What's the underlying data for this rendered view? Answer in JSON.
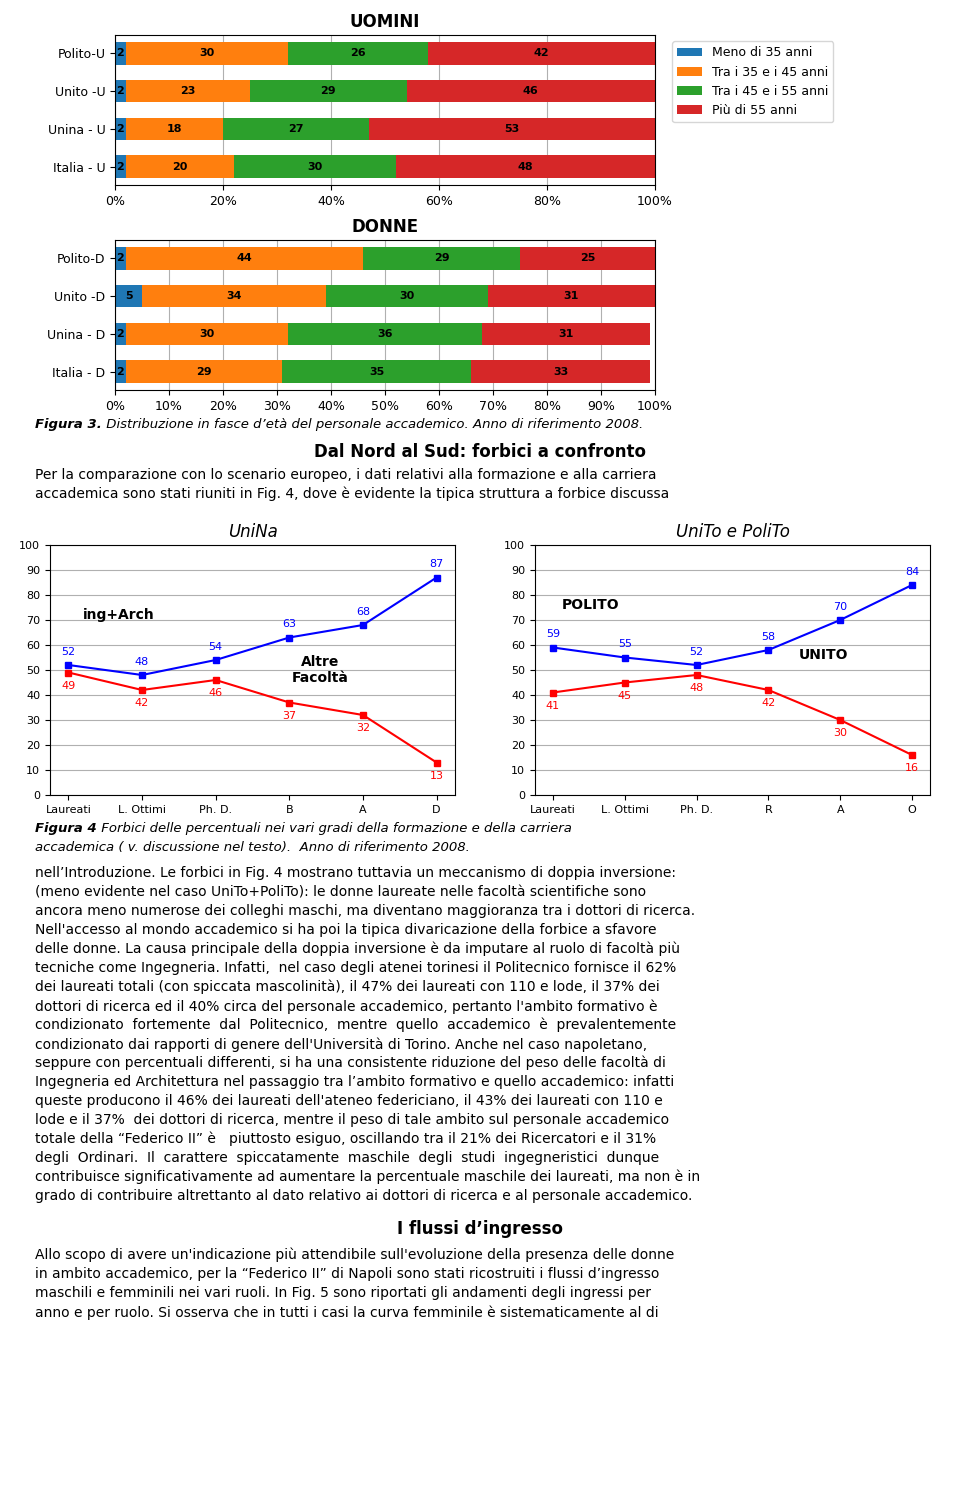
{
  "chart_data": [
    {
      "type": "bar",
      "orientation": "horizontal",
      "stacked": true,
      "title": "UOMINI",
      "categories": [
        "Polito-U",
        "Unito -U",
        "Unina - U",
        "Italia - U"
      ],
      "series": [
        {
          "name": "Meno di 35 anni",
          "values": [
            2,
            2,
            2,
            2
          ]
        },
        {
          "name": "Tra i 35 e i 45 anni",
          "values": [
            30,
            23,
            18,
            20
          ]
        },
        {
          "name": "Tra i 45 e i 55 anni",
          "values": [
            26,
            29,
            27,
            30
          ]
        },
        {
          "name": "Più di 55 anni",
          "values": [
            42,
            46,
            53,
            48
          ]
        }
      ],
      "xlim": [
        0,
        100
      ],
      "xticks": [
        {
          "value": 0,
          "label": "0%"
        },
        {
          "value": 20,
          "label": "20%"
        },
        {
          "value": 40,
          "label": "40%"
        },
        {
          "value": 60,
          "label": "60%"
        },
        {
          "value": 80,
          "label": "80%"
        },
        {
          "value": 100,
          "label": "100%"
        }
      ],
      "grid": true,
      "data_labels": true,
      "legend": "upper left"
    },
    {
      "type": "bar",
      "orientation": "horizontal",
      "stacked": true,
      "title": "DONNE",
      "categories": [
        "Polito-D",
        "Unito -D",
        "Unina - D",
        "Italia - D"
      ],
      "series": [
        {
          "values": [
            2,
            5,
            2,
            2
          ]
        },
        {
          "values": [
            44,
            34,
            30,
            29
          ]
        },
        {
          "values": [
            29,
            30,
            36,
            35
          ]
        },
        {
          "values": [
            25,
            31,
            31,
            33
          ]
        }
      ],
      "xlim": [
        0,
        100
      ],
      "xticks": [
        {
          "value": 0,
          "label": "0%"
        },
        {
          "value": 10,
          "label": "10%"
        },
        {
          "value": 20,
          "label": "20%"
        },
        {
          "value": 30,
          "label": "30%"
        },
        {
          "value": 40,
          "label": "40%"
        },
        {
          "value": 50,
          "label": "50%"
        },
        {
          "value": 60,
          "label": "60%"
        },
        {
          "value": 70,
          "label": "70%"
        },
        {
          "value": 80,
          "label": "80%"
        },
        {
          "value": 90,
          "label": "90%"
        },
        {
          "value": 100,
          "label": "100%"
        }
      ],
      "grid": true,
      "data_labels": true
    },
    {
      "type": "line",
      "title": "UniNa",
      "categories": [
        "Laureati",
        "L. Ottimi",
        "Ph. D.",
        "B",
        "A",
        "D"
      ],
      "series": [
        {
          "color": "blue",
          "marker": "square",
          "line_style": "solid",
          "values": [
            52,
            48,
            54,
            63,
            68,
            87
          ]
        },
        {
          "color": "red",
          "marker": "square",
          "line_style": "solid",
          "values": [
            49,
            42,
            46,
            37,
            32,
            13
          ]
        }
      ],
      "ylim": [
        0,
        100
      ],
      "yticks": [
        0,
        10,
        20,
        30,
        40,
        50,
        60,
        70,
        80,
        90,
        100
      ],
      "grid": true,
      "data_labels": true,
      "annotations": [
        "ing+Arch",
        "Altre\nFacoltà"
      ]
    },
    {
      "type": "line",
      "title": "UniTo e PoliTo",
      "categories": [
        "Laureati",
        "L. Ottimi",
        "Ph. D.",
        "R",
        "A",
        "O"
      ],
      "series": [
        {
          "color": "blue",
          "marker": "square",
          "line_style": "solid",
          "values": [
            59,
            55,
            52,
            58,
            70,
            84
          ]
        },
        {
          "color": "red",
          "marker": "square",
          "line_style": "solid",
          "values": [
            41,
            45,
            48,
            42,
            30,
            16
          ]
        }
      ],
      "ylim": [
        0,
        100
      ],
      "yticks": [
        0,
        10,
        20,
        30,
        40,
        50,
        60,
        70,
        80,
        90,
        100
      ],
      "grid": true,
      "data_labels": true,
      "annotations": [
        "POLITO",
        "UNITO"
      ]
    }
  ],
  "annotations": [
    [
      "Figura 3.",
      " Distribuzione in fasce d’età del personale accademico. Anno di riferimento 2008."
    ],
    "Dal Nord al Sud: forbici a confronto",
    [
      "Per la comparazione con lo scenario europeo, i dati relativi alla formazione e alla carriera",
      "accademica sono stati riuniti in Fig. 4, dove è evidente la tipica struttura a forbice discussa"
    ],
    [
      "Figura 4",
      " Forbici delle percentuali nei vari gradi della formazione e della carriera\naccademica ( v. discussione nel testo).  Anno di riferimento 2008."
    ],
    [
      "nell’Introduzione. Le forbici in Fig. 4 mostrano tuttavia un meccanismo di doppia inversione:",
      "(meno evidente nel caso UniTo+PoliTo): le donne laureate nelle facoltà scientifiche sono",
      "ancora meno numerose dei colleghi maschi, ma diventano maggioranza tra i dottori di ricerca.",
      "Nell'accesso al mondo accademico si ha poi la tipica divaricazione della forbice a sfavore",
      "delle donne. La causa principale della doppia inversione è da imputare al ruolo di facoltà più",
      "tecniche come Ingegneria. Infatti,  nel caso degli atenei torinesi il Politecnico fornisce il 62%",
      "dei laureati totali (con spiccata mascolinità), il 47% dei laureati con 110 e lode, il 37% dei",
      "dottori di ricerca ed il 40% circa del personale accademico, pertanto l'ambito formativo è",
      "condizionato  fortemente  dal  Politecnico,  mentre  quello  accademico  è  prevalentemente",
      "condizionato dai rapporti di genere dell'Università di Torino. Anche nel caso napoletano,",
      "seppure con percentuali differenti, si ha una consistente riduzione del peso delle facoltà di",
      "Ingegneria ed Architettura nel passaggio tra l’ambito formativo e quello accademico: infatti",
      "queste producono il 46% dei laureati dell'ateneo federiciano, il 43% dei laureati con 110 e",
      "lode e il 37%  dei dottori di ricerca, mentre il peso di tale ambito sul personale accademico",
      "totale della “Federico II” è   piuttosto esiguo, oscillando tra il 21% dei Ricercatori e il 31%",
      "degli  Ordinari.  Il  carattere  spiccatamente  maschile  degli  studi  ingegneristici  dunque",
      "contribuisce significativamente ad aumentare la percentuale maschile dei laureati, ma non è in",
      "grado di contribuire altrettanto al dato relativo ai dottori di ricerca e al personale accademico."
    ],
    "I flussi d’ingresso",
    [
      "Allo scopo di avere un'indicazione più attendibile sull'evoluzione della presenza delle donne",
      "in ambito accademico, per la “Federico II” di Napoli sono stati ricostruiti i flussi d’ingresso",
      "maschili e femminili nei vari ruoli. In Fig. 5 sono riportati gli andamenti degli ingressi per",
      "anno e per ruolo. Si osserva che in tutti i casi la curva femminile è sistematicamente al di"
    ]
  ]
}
